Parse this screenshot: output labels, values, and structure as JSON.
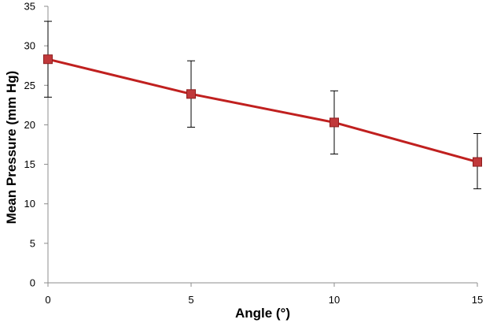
{
  "chart_data": {
    "type": "line",
    "title": "",
    "xlabel": "Angle (°)",
    "ylabel": "Mean Pressure (mm Hg)",
    "xlim": [
      0,
      15
    ],
    "ylim": [
      0,
      35
    ],
    "x_ticks": [
      0,
      5,
      10,
      15
    ],
    "y_ticks": [
      0,
      5,
      10,
      15,
      20,
      25,
      30,
      35
    ],
    "grid": false,
    "legend": "none",
    "series": [
      {
        "x": [
          0,
          5,
          10,
          15
        ],
        "y": [
          28.3,
          23.9,
          20.3,
          15.3
        ],
        "error_low": [
          23.5,
          19.7,
          16.3,
          11.9
        ],
        "error_high": [
          33.1,
          28.1,
          24.3,
          18.9
        ],
        "color": "#c0201f",
        "marker_color": "#c0383a"
      }
    ]
  }
}
